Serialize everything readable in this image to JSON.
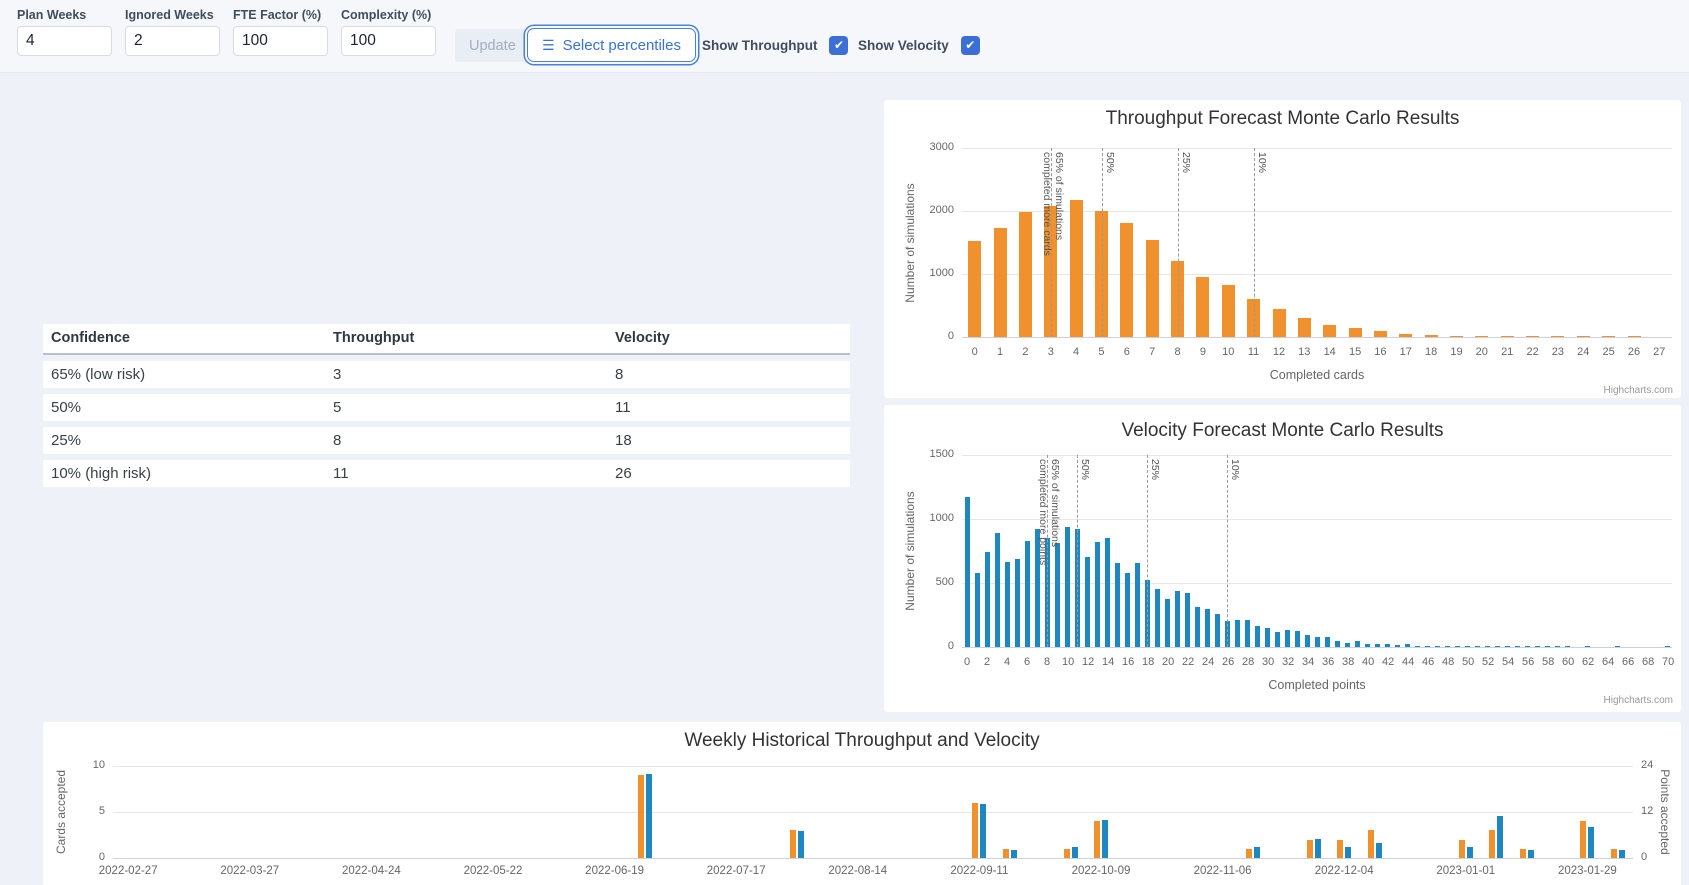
{
  "toolbar": {
    "fields": [
      {
        "label": "Plan Weeks",
        "value": "4"
      },
      {
        "label": "Ignored Weeks",
        "value": "2"
      },
      {
        "label": "FTE Factor (%)",
        "value": "100"
      },
      {
        "label": "Complexity (%)",
        "value": "100"
      }
    ],
    "update_label": "Update",
    "select_percentiles_label": "Select percentiles",
    "checkboxes": [
      {
        "label": "Show Throughput",
        "checked": true
      },
      {
        "label": "Show Velocity",
        "checked": true
      }
    ]
  },
  "confidence_table": {
    "headers": [
      "Confidence",
      "Throughput",
      "Velocity"
    ],
    "rows": [
      [
        "65% (low risk)",
        "3",
        "8"
      ],
      [
        "50%",
        "5",
        "11"
      ],
      [
        "25%",
        "8",
        "18"
      ],
      [
        "10% (high risk)",
        "11",
        "26"
      ]
    ]
  },
  "attribution": "Highcharts.com",
  "colors": {
    "throughput_orange": "#f0912d",
    "velocity_blue": "#1f87c0",
    "accent_blue": "#3c6fd6",
    "percentile_line": "#9a9a9a"
  },
  "chart_data": [
    {
      "type": "bar",
      "title": "Throughput Forecast Monte Carlo Results",
      "xlabel": "Completed cards",
      "ylabel": "Number of simulations",
      "ylim": [
        0,
        3000
      ],
      "yticks": [
        0,
        1000,
        2000,
        3000
      ],
      "grid": true,
      "legend": "none",
      "color": "#f0912d",
      "categories": [
        0,
        1,
        2,
        3,
        4,
        5,
        6,
        7,
        8,
        9,
        10,
        11,
        12,
        13,
        14,
        15,
        16,
        17,
        18,
        19,
        20,
        21,
        22,
        23,
        24,
        25,
        26,
        27
      ],
      "values": [
        1530,
        1730,
        1980,
        2080,
        2170,
        1995,
        1810,
        1535,
        1200,
        950,
        830,
        600,
        445,
        300,
        195,
        150,
        90,
        55,
        35,
        18,
        10,
        6,
        4,
        3,
        2,
        1,
        1,
        0
      ],
      "plot_lines": [
        {
          "value": 3,
          "label": "65% of simulations completed more cards"
        },
        {
          "value": 5,
          "label": "50%"
        },
        {
          "value": 8,
          "label": "25%"
        },
        {
          "value": 11,
          "label": "10%"
        }
      ]
    },
    {
      "type": "bar",
      "title": "Velocity Forecast Monte Carlo Results",
      "xlabel": "Completed points",
      "ylabel": "Number of simulations",
      "ylim": [
        0,
        1500
      ],
      "yticks": [
        0,
        500,
        1000,
        1500
      ],
      "grid": true,
      "legend": "none",
      "color": "#1f87c0",
      "categories": [
        0,
        1,
        2,
        3,
        4,
        5,
        6,
        7,
        8,
        9,
        10,
        11,
        12,
        13,
        14,
        15,
        16,
        17,
        18,
        19,
        20,
        21,
        22,
        23,
        24,
        25,
        26,
        27,
        28,
        29,
        30,
        31,
        32,
        33,
        34,
        35,
        36,
        37,
        38,
        39,
        40,
        41,
        42,
        43,
        44,
        45,
        46,
        47,
        48,
        49,
        50,
        51,
        52,
        53,
        54,
        55,
        56,
        57,
        58,
        59,
        60,
        61,
        62,
        63,
        64,
        65,
        66,
        67,
        68,
        69,
        70
      ],
      "values": [
        1170,
        580,
        740,
        890,
        665,
        690,
        830,
        920,
        855,
        810,
        935,
        920,
        705,
        820,
        850,
        660,
        580,
        660,
        520,
        450,
        375,
        440,
        420,
        310,
        300,
        260,
        205,
        210,
        215,
        165,
        145,
        120,
        130,
        125,
        95,
        75,
        75,
        45,
        35,
        45,
        25,
        20,
        25,
        15,
        20,
        10,
        8,
        6,
        5,
        4,
        3,
        3,
        2,
        2,
        2,
        1,
        1,
        1,
        1,
        1,
        1,
        0,
        1,
        0,
        0,
        1,
        0,
        0,
        0,
        0,
        1
      ],
      "plot_lines": [
        {
          "value": 8,
          "label": "65% of simulations completed more points"
        },
        {
          "value": 11,
          "label": "50%"
        },
        {
          "value": 18,
          "label": "25%"
        },
        {
          "value": 26,
          "label": "10%"
        }
      ]
    },
    {
      "type": "bar",
      "title": "Weekly Historical Throughput and Velocity",
      "ylabel_left": "Cards accepted",
      "ylabel_right": "Points accepted",
      "ylim_left": [
        0,
        10
      ],
      "yticks_left": [
        0,
        5,
        10
      ],
      "ylim_right": [
        0,
        24
      ],
      "yticks_right": [
        0,
        12,
        24
      ],
      "grid": true,
      "legend": "none",
      "x_tick_labels": [
        "2022-02-27",
        "2022-03-27",
        "2022-04-24",
        "2022-05-22",
        "2022-06-19",
        "2022-07-17",
        "2022-08-14",
        "2022-09-11",
        "2022-10-09",
        "2022-11-06",
        "2022-12-04",
        "2023-01-01",
        "2023-01-29"
      ],
      "weeks_total": 50,
      "series": [
        {
          "name": "Cards accepted",
          "color": "#f0912d",
          "axis": "left"
        },
        {
          "name": "Points accepted",
          "color": "#1f87c0",
          "axis": "right"
        }
      ],
      "points": [
        {
          "week": 17,
          "date": "2022-06-26",
          "cards": 9,
          "points": 22
        },
        {
          "week": 22,
          "date": "2022-07-31",
          "cards": 3,
          "points": 7
        },
        {
          "week": 28,
          "date": "2022-09-11",
          "cards": 6,
          "points": 14
        },
        {
          "week": 29,
          "date": "2022-09-18",
          "cards": 1,
          "points": 2
        },
        {
          "week": 31,
          "date": "2022-10-02",
          "cards": 1,
          "points": 3
        },
        {
          "week": 32,
          "date": "2022-10-09",
          "cards": 4,
          "points": 10
        },
        {
          "week": 37,
          "date": "2022-11-13",
          "cards": 1,
          "points": 3
        },
        {
          "week": 39,
          "date": "2022-11-27",
          "cards": 2,
          "points": 5
        },
        {
          "week": 40,
          "date": "2022-12-04",
          "cards": 2,
          "points": 3
        },
        {
          "week": 41,
          "date": "2022-12-11",
          "cards": 3,
          "points": 4
        },
        {
          "week": 44,
          "date": "2023-01-01",
          "cards": 2,
          "points": 3
        },
        {
          "week": 45,
          "date": "2023-01-08",
          "cards": 3,
          "points": 11
        },
        {
          "week": 46,
          "date": "2023-01-15",
          "cards": 1,
          "points": 2
        },
        {
          "week": 48,
          "date": "2023-01-29",
          "cards": 4,
          "points": 8
        },
        {
          "week": 49,
          "date": "2023-02-05",
          "cards": 1,
          "points": 2
        }
      ]
    }
  ]
}
